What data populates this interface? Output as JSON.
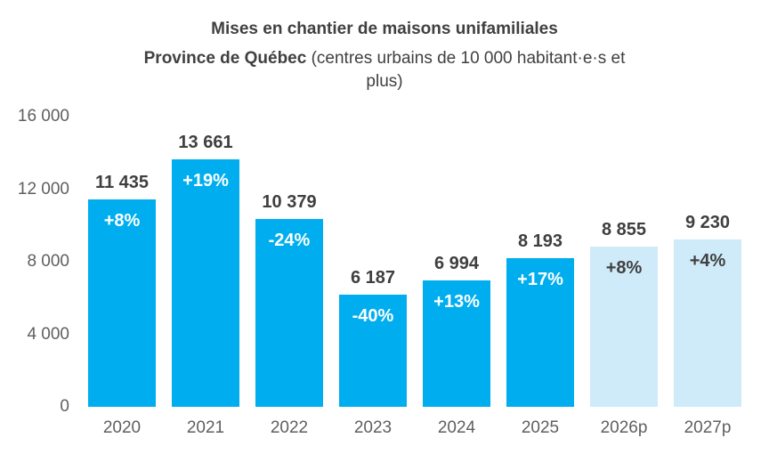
{
  "title": "Mises en chantier de maisons unifamiliales",
  "subtitle": {
    "bold": "Province de Québec",
    "regular_line1": " (centres urbains de 10 000 habitant·e·s et",
    "line2": "plus)"
  },
  "colors": {
    "bar_actual": "#00AEEF",
    "bar_forecast": "#CFEBF9",
    "pct_label_actual": "#FFFFFF",
    "pct_label_forecast": "#404040",
    "value_label": "#3F3F3F",
    "axis_label": "#5F5F5F",
    "title_text": "#404040"
  },
  "chart_data": {
    "type": "bar",
    "title": "Mises en chantier de maisons unifamiliales",
    "subtitle": "Province de Québec (centres urbains de 10 000 habitant·e·s et plus)",
    "categories": [
      "2020",
      "2021",
      "2022",
      "2023",
      "2024",
      "2025",
      "2026p",
      "2027p"
    ],
    "values": [
      11435,
      13661,
      10379,
      6187,
      6994,
      8193,
      8855,
      9230
    ],
    "value_labels": [
      "11 435",
      "13 661",
      "10 379",
      "6 187",
      "6 994",
      "8 193",
      "8 855",
      "9 230"
    ],
    "pct_labels": [
      "+8%",
      "+19%",
      "-24%",
      "-40%",
      "+13%",
      "+17%",
      "+8%",
      "+4%"
    ],
    "forecast": [
      false,
      false,
      false,
      false,
      false,
      false,
      true,
      true
    ],
    "xlabel": "",
    "ylabel": "",
    "ylim": [
      0,
      16000
    ],
    "yticks": [
      0,
      4000,
      8000,
      12000,
      16000
    ],
    "ytick_labels": [
      "0",
      "4 000",
      "8 000",
      "12 000",
      "16 000"
    ],
    "grid": false,
    "legend": "none"
  }
}
